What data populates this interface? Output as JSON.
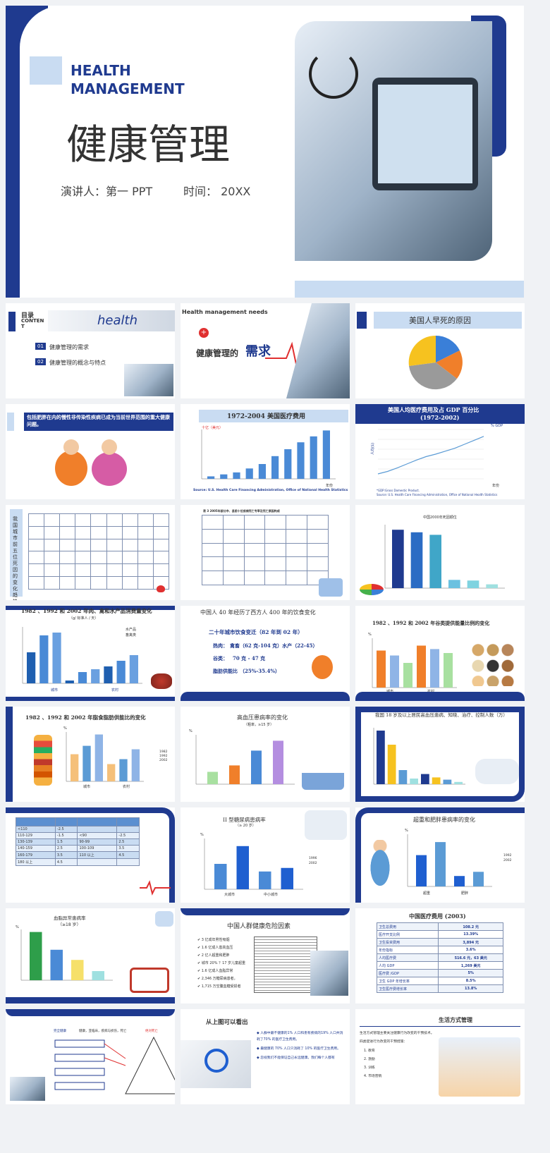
{
  "cover": {
    "title_en_1": "HEALTH",
    "title_en_2": "MANAGEMENT",
    "title_cn": "健康管理",
    "speaker": "演讲人：第一 PPT",
    "time": "时间：  20XX"
  },
  "toc": {
    "title": "目录",
    "title_en_1": "CONTEN",
    "title_en_2": "T",
    "banner": "health",
    "items": [
      {
        "num": "01",
        "label": "健康管理的需求"
      },
      {
        "num": "02",
        "label": "健康管理的概念与特点"
      }
    ]
  },
  "needs": {
    "title_en": "Health management needs",
    "title_cn": "健康管理的",
    "title_cn_big": "需求"
  },
  "death_causes": {
    "title": "美国人早死的原因"
  },
  "obesity": {
    "banner": "包括肥胖在内的慢性非传染性疾病已成为当前世界范围的重大健康问题。"
  },
  "us_cost": {
    "title": "1972-2004 美国医疗费用",
    "ylabel": "十亿（美元）",
    "xlabel": "年份",
    "source": "Source:  U.S. Health Care Financing Administration, Office of National Health Statistics"
  },
  "gdp_share": {
    "title_1": "美国人均医疗费用及占 GDP 百分比",
    "title_2": "(1972-2002)",
    "ylabel": "人均($)",
    "ylabel_right": "% GDP",
    "xlabel": "年份",
    "note": "*GDP:Gross Domestic Product.",
    "source": "Source:  U.S. Health Care Financing Administration, Office of National Health Statistics"
  },
  "cn_death": {
    "side": "我国城市前五位死因的变化趋势"
  },
  "death_table": {
    "caption": "表 3    2005年部分市、县前十位疾病死亡专率及死亡原因构成"
  },
  "china2000": {
    "title": "中国2000年死因顺位"
  },
  "food_supply": {
    "title": "1982 、1992 和 2002 年肉、禽和水产品消费量变化",
    "subtitle": "（g/ 标准人 / 天）",
    "legend": [
      "水产品",
      "畜禽类"
    ],
    "groups": [
      "城市",
      "农村"
    ]
  },
  "diet_change": {
    "title": "中国人 40 年经历了西方人 400 年的饮食变化",
    "subtitle": "二十年城市饮食变迁（82 年到 02 年）",
    "l1_label": "热肉：",
    "l1_value": "禽畜（62 克-104 克）水产（22-45）",
    "l2_label": "谷类：",
    "l2_value": "70 克 - 47 克",
    "l3_label": "脂肪供能比",
    "l3_value": "（25%-35.4%）"
  },
  "grain": {
    "title": "1982 、1992 和 2002 年谷类提供能量比例的变化",
    "ylabel": "%",
    "groups": [
      "城市",
      "农村"
    ],
    "legend": [
      "1982",
      "1992",
      "2002"
    ]
  },
  "fat": {
    "title": "1982 、1992 和 2002 年脂食脂肪供能比的变化",
    "ylabel": "%",
    "groups": [
      "城市",
      "农村"
    ],
    "legend": [
      "1982",
      "1992",
      "2002"
    ]
  },
  "hypertension": {
    "title": "高血压患病率的变化",
    "subtitle": "（粗率，≥15 岁）",
    "ylabel": "%"
  },
  "awareness": {
    "title": "我国 18 岁及以上居民高血压患病、知晓、治疗、控制人数（万）"
  },
  "bp_table": {
    "headers": [
      "",
      "",
      "",
      ""
    ],
    "rows": [
      [
        "<110",
        "-2.5",
        "",
        ""
      ],
      [
        "110-129",
        "-1.5",
        "<90",
        "-2.5"
      ],
      [
        "130-139",
        "1.5",
        "90-99",
        "2.5"
      ],
      [
        "140-159",
        "2.5",
        "100-109",
        "3.5"
      ],
      [
        "160-179",
        "3.5",
        "110 以上",
        "4.5"
      ],
      [
        "180 以上",
        "4.5",
        "",
        ""
      ]
    ]
  },
  "diabetes": {
    "title": "II 型糖尿病患病率",
    "subtitle": "（≥ 20 岁）",
    "ylabel": "%",
    "groups": [
      "大城市",
      "中小城市"
    ],
    "legend": [
      "1996",
      "2002"
    ]
  },
  "overweight": {
    "title": "超重和肥胖患病率的变化",
    "ylabel": "%",
    "groups": [
      "超重",
      "肥胖"
    ],
    "legend": [
      "1992",
      "2002"
    ]
  },
  "lipid": {
    "title": "血脂异常患病率",
    "subtitle": "（≥18 岁）",
    "ylabel": "%"
  },
  "risk": {
    "title": "中国人群健康危险因素",
    "items": [
      "3 亿成年男性吸烟",
      "1.6 亿成人患高血压",
      "2 亿人超重和肥胖",
      "城市 20% ？17 岁儿童超重",
      "1.6 亿成人血脂异常",
      "2,346 万糖尿病患者，",
      "1,715 万空腹血糖受损者"
    ]
  },
  "cn_cost": {
    "title": "中国医疗费用 (2003)",
    "rows": [
      [
        "卫生总费用",
        "108.2 元"
      ],
      [
        "医疗开支比例",
        "13.39%"
      ],
      [
        "卫生投资费用",
        "3,894 元"
      ],
      [
        "年份指标",
        "3.6%"
      ],
      [
        "人均医疗费",
        "516.6 元，63 美元"
      ],
      [
        "人均 GDP",
        "1,269 美元"
      ],
      [
        "医疗费 /GDP",
        "5%"
      ],
      [
        "卫生 GDP 年增长率",
        "8.5%"
      ],
      [
        "卫生医疗费增长率",
        "13.8%"
      ]
    ]
  },
  "pyramid": {
    "top_label": "完全健康",
    "top_line": "健康，亚临床，疾病与损伤，死亡",
    "end_label": "绝对死亡"
  },
  "conclusion": {
    "title": "从上图可以看出",
    "paragraphs": [
      "人群中最不健康的1% 人口和患有疾病的19% 人口共消耗了70% 的医疗卫生费用。",
      "最健康的 70% 人口只消耗了 10% 的医疗卫生费用。",
      "忽视我们不能保证自己永远健康。我们每个人都有"
    ]
  },
  "lifestyle": {
    "title": "生活方式管理",
    "intro": "生活方式管理主要关注健康行为改变的干预技术。",
    "intro2": "四类促进行为改变的干预措施：",
    "items": [
      "1.   教育",
      "2.   激励",
      "3.   训练",
      "4.   市场营销"
    ]
  },
  "colors": {
    "navy": "#1f3a8f",
    "light_blue": "#c9dcf2",
    "accent_red": "#e03030"
  }
}
